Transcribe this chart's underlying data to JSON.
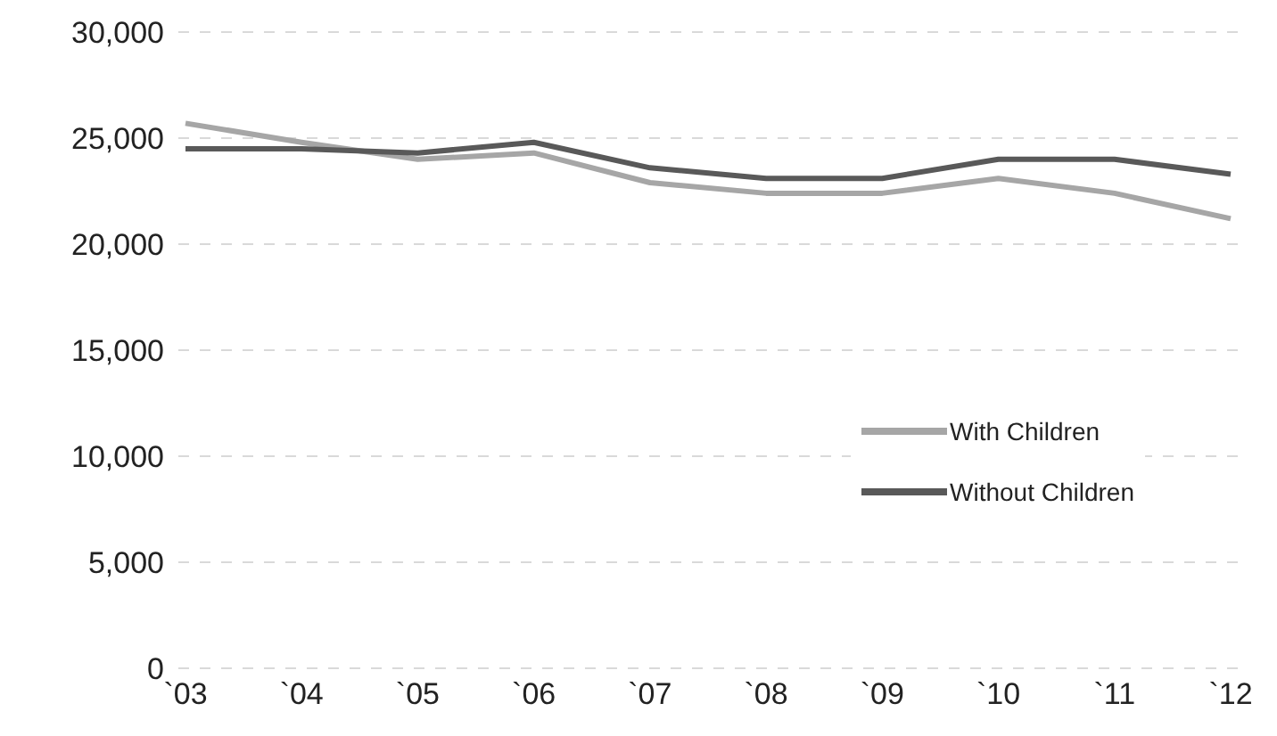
{
  "chart_data": {
    "type": "line",
    "categories": [
      "`03",
      "`04",
      "`05",
      "`06",
      "`07",
      "`08",
      "`09",
      "`10",
      "`11",
      "`12"
    ],
    "series": [
      {
        "name": "With Children",
        "color": "#a6a6a6",
        "values": [
          25700,
          24800,
          24000,
          24300,
          22900,
          22400,
          22400,
          23100,
          22400,
          21200
        ]
      },
      {
        "name": "Without Children",
        "color": "#595959",
        "values": [
          24500,
          24500,
          24300,
          24800,
          23600,
          23100,
          23100,
          24000,
          24000,
          23300
        ]
      }
    ],
    "ylim": [
      0,
      30000
    ],
    "yticks": [
      0,
      {
        "value": 5000,
        "label": "5,000"
      },
      {
        "value": 10000,
        "label": "10,000"
      },
      {
        "value": 15000,
        "label": "15,000"
      },
      {
        "value": 20000,
        "label": "20,000"
      },
      {
        "value": 25000,
        "label": "25,000"
      },
      {
        "value": 30000,
        "label": "30,000"
      }
    ],
    "grid": "y",
    "legend": "right",
    "marker": "none",
    "line_style": "solid"
  }
}
